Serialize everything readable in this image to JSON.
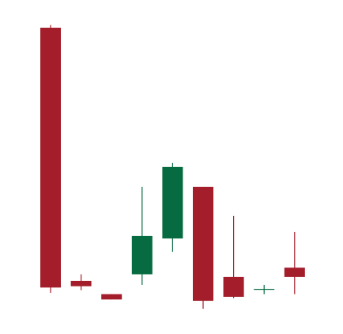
{
  "chart_data": {
    "type": "candlestick",
    "title": "",
    "xlabel": "",
    "ylabel": "",
    "ylim": [
      0,
      100
    ],
    "grid": false,
    "legend": "none",
    "colors": {
      "up": "#066B41",
      "down": "#A31D2B",
      "background": "#FFFFFF"
    },
    "candles": [
      {
        "open": 100,
        "high": 101,
        "low": 0,
        "close": 2
      },
      {
        "open": 4.5,
        "high": 7,
        "low": 1,
        "close": 2.5
      },
      {
        "open": -0.5,
        "high": -0.5,
        "low": -2.5,
        "close": -2.5
      },
      {
        "open": 7,
        "high": 40,
        "low": 3,
        "close": 21.5
      },
      {
        "open": 20.5,
        "high": 49,
        "low": 15.5,
        "close": 47.5
      },
      {
        "open": 40,
        "high": 40,
        "low": -6,
        "close": -3
      },
      {
        "open": 6,
        "high": 29,
        "low": -2,
        "close": -1.5
      },
      {
        "open": 1.5,
        "high": 3,
        "low": -0.5,
        "close": 1.5
      },
      {
        "open": 9.5,
        "high": 23,
        "low": -0.5,
        "close": 6
      }
    ]
  }
}
